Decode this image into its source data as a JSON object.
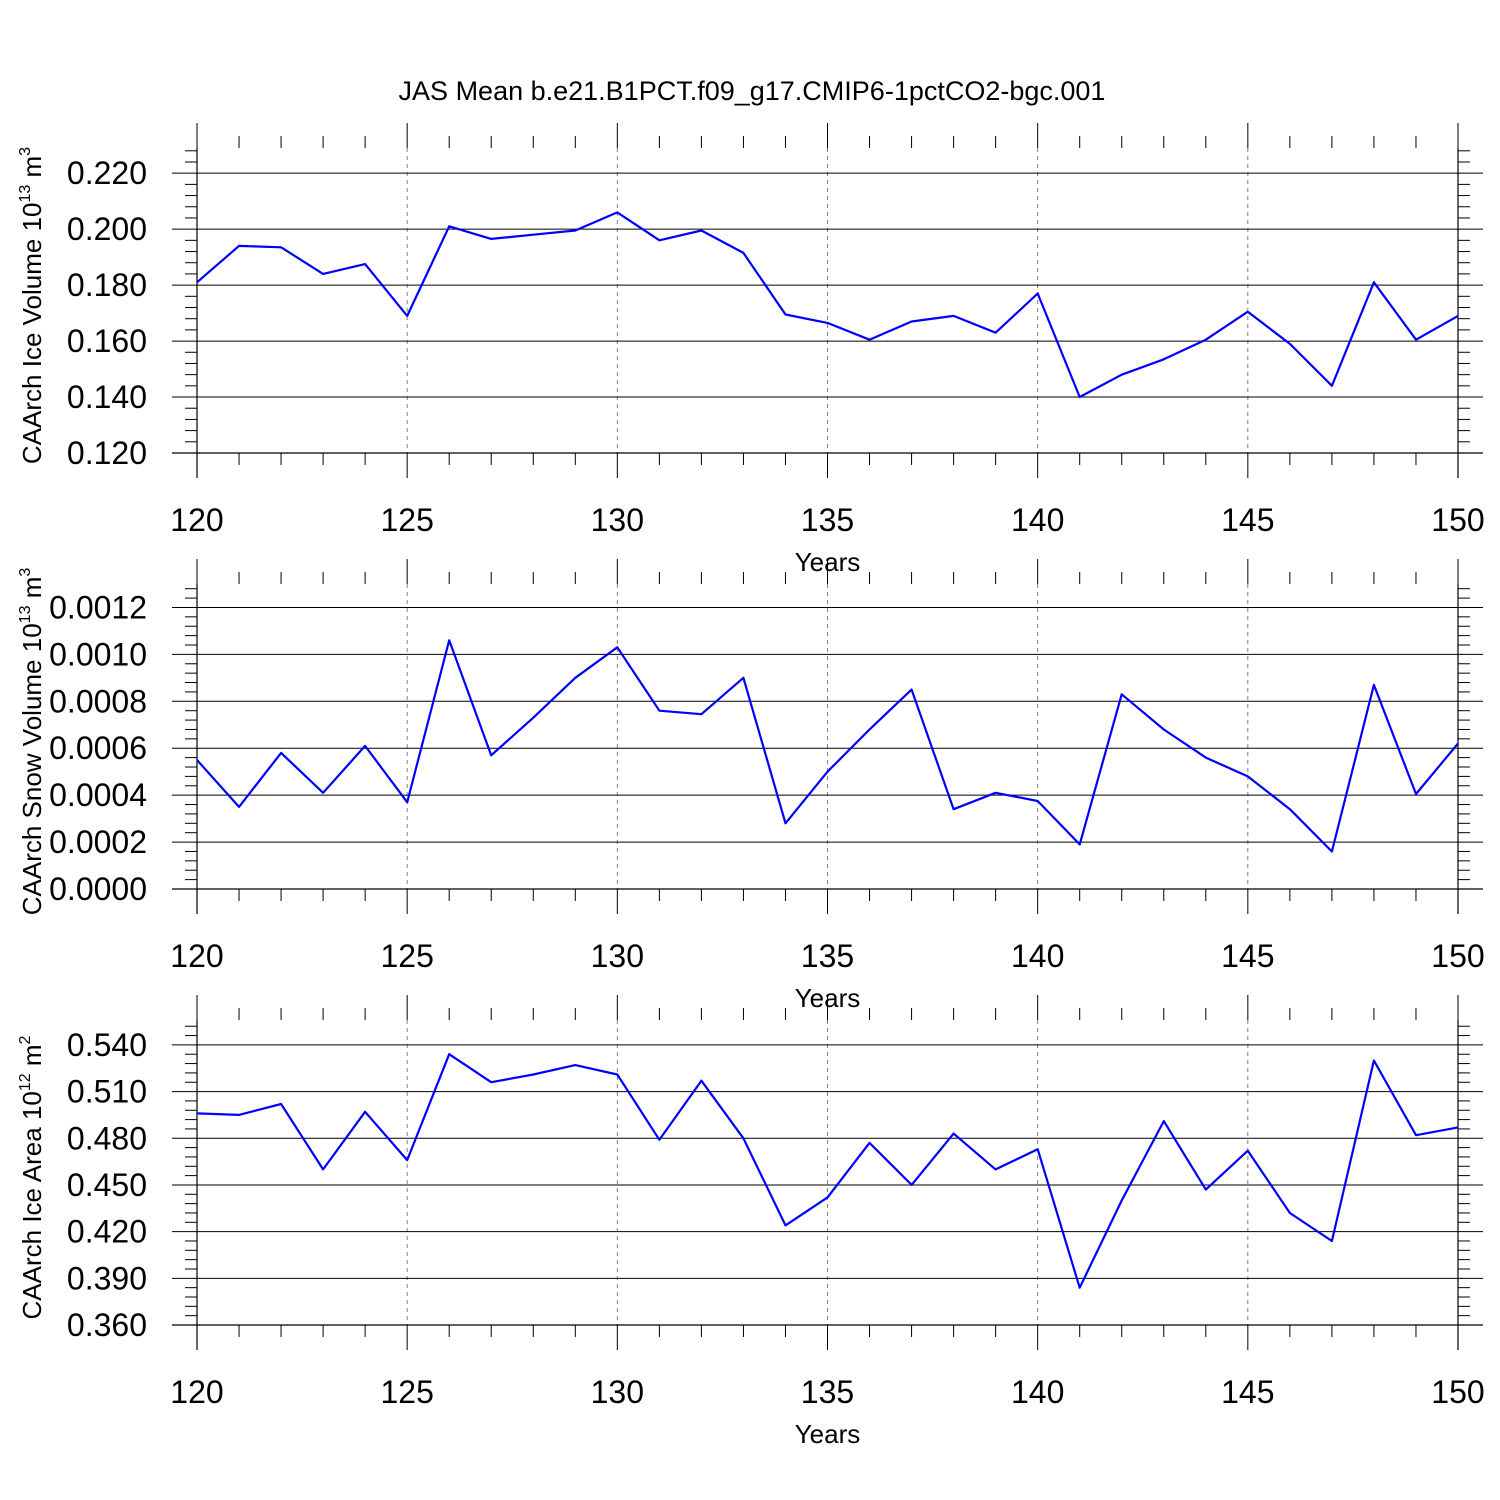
{
  "title": "JAS Mean b.e21.B1PCT.f09_g17.CMIP6-1pctCO2-bgc.001",
  "colors": {
    "line": "#0000ff",
    "axis": "#000000",
    "grid": "#7f7f7f"
  },
  "chart_data": [
    {
      "type": "line",
      "xlabel": "Years",
      "ylabel": "CAArch Ice Volume 10",
      "ylabel_exp": "13",
      "ylabel_unit": " m",
      "ylabel_unit_exp": "3",
      "xlim": [
        120,
        150
      ],
      "ylim": [
        0.12,
        0.229
      ],
      "xticks": [
        "120",
        "125",
        "130",
        "135",
        "140",
        "145",
        "150"
      ],
      "yticks": [
        "0.120",
        "0.140",
        "0.160",
        "0.180",
        "0.200",
        "0.220"
      ],
      "ytick_values": [
        0.12,
        0.14,
        0.16,
        0.18,
        0.2,
        0.22
      ],
      "grid": "vertical dashed",
      "x": [
        120,
        121,
        122,
        123,
        124,
        125,
        126,
        127,
        128,
        129,
        130,
        131,
        132,
        133,
        134,
        135,
        136,
        137,
        138,
        139,
        140,
        141,
        142,
        143,
        144,
        145,
        146,
        147,
        148,
        149,
        150
      ],
      "series": [
        {
          "values": [
            0.181,
            0.194,
            0.1935,
            0.184,
            0.1875,
            0.169,
            0.201,
            0.1965,
            0.198,
            0.1995,
            0.206,
            0.196,
            0.1995,
            0.1915,
            0.1695,
            0.1665,
            0.1605,
            0.167,
            0.169,
            0.163,
            0.177,
            0.14,
            0.148,
            0.1535,
            0.1605,
            0.1705,
            0.159,
            0.144,
            0.181,
            0.1605,
            0.169
          ]
        }
      ]
    },
    {
      "type": "line",
      "xlabel": "Years",
      "ylabel": "CAArch Snow Volume 10",
      "ylabel_exp": "13",
      "ylabel_unit": " m",
      "ylabel_unit_exp": "3",
      "xlim": [
        120,
        150
      ],
      "ylim": [
        0.0,
        0.0013
      ],
      "xticks": [
        "120",
        "125",
        "130",
        "135",
        "140",
        "145",
        "150"
      ],
      "yticks": [
        "0.0000",
        "0.0002",
        "0.0004",
        "0.0006",
        "0.0008",
        "0.0010",
        "0.0012"
      ],
      "ytick_values": [
        0.0,
        0.0002,
        0.0004,
        0.0006,
        0.0008,
        0.001,
        0.0012
      ],
      "grid": "vertical dashed",
      "x": [
        120,
        121,
        122,
        123,
        124,
        125,
        126,
        127,
        128,
        129,
        130,
        131,
        132,
        133,
        134,
        135,
        136,
        137,
        138,
        139,
        140,
        141,
        142,
        143,
        144,
        145,
        146,
        147,
        148,
        149,
        150
      ],
      "series": [
        {
          "values": [
            0.00055,
            0.00035,
            0.00058,
            0.00041,
            0.00061,
            0.00037,
            0.00106,
            0.00057,
            0.00073,
            0.0009,
            0.00103,
            0.00076,
            0.000745,
            0.0009,
            0.00028,
            0.0005,
            0.00068,
            0.00085,
            0.00034,
            0.00041,
            0.000375,
            0.00019,
            0.00083,
            0.00068,
            0.00056,
            0.00048,
            0.00034,
            0.00016,
            0.00087,
            0.000405,
            0.00062
          ]
        }
      ]
    },
    {
      "type": "line",
      "xlabel": "Years",
      "ylabel": "CAArch Ice Area 10",
      "ylabel_exp": "12",
      "ylabel_unit": " m",
      "ylabel_unit_exp": "2",
      "xlim": [
        120,
        150
      ],
      "ylim": [
        0.36,
        0.556
      ],
      "xticks": [
        "120",
        "125",
        "130",
        "135",
        "140",
        "145",
        "150"
      ],
      "yticks": [
        "0.360",
        "0.390",
        "0.420",
        "0.450",
        "0.480",
        "0.510",
        "0.540"
      ],
      "ytick_values": [
        0.36,
        0.39,
        0.42,
        0.45,
        0.48,
        0.51,
        0.54
      ],
      "grid": "vertical dashed",
      "x": [
        120,
        121,
        122,
        123,
        124,
        125,
        126,
        127,
        128,
        129,
        130,
        131,
        132,
        133,
        134,
        135,
        136,
        137,
        138,
        139,
        140,
        141,
        142,
        143,
        144,
        145,
        146,
        147,
        148,
        149,
        150
      ],
      "series": [
        {
          "values": [
            0.496,
            0.495,
            0.502,
            0.46,
            0.497,
            0.466,
            0.534,
            0.516,
            0.521,
            0.527,
            0.521,
            0.479,
            0.517,
            0.48,
            0.424,
            0.442,
            0.477,
            0.45,
            0.483,
            0.46,
            0.473,
            0.384,
            0.44,
            0.491,
            0.447,
            0.472,
            0.432,
            0.414,
            0.53,
            0.482,
            0.487
          ]
        }
      ]
    }
  ]
}
